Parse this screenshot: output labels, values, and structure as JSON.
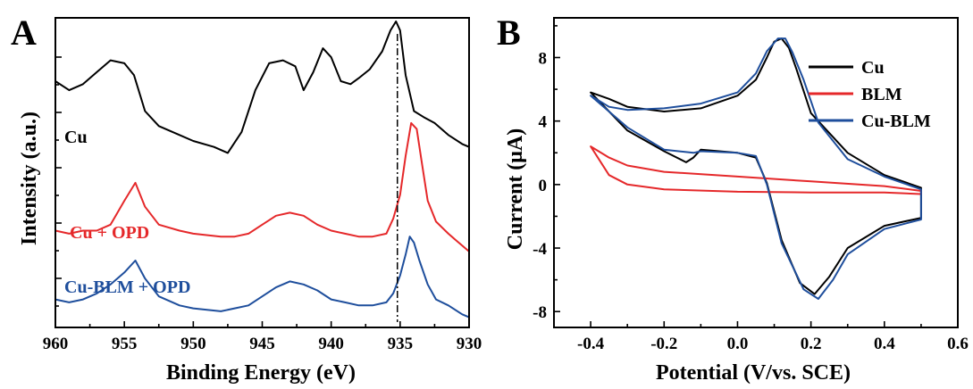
{
  "chart_data": [
    {
      "panel": "A",
      "type": "line",
      "xlabel": "Binding Energy (eV)",
      "ylabel": "Intensity (a.u.)",
      "xlim": [
        960,
        930
      ],
      "x_reversed": true,
      "x_ticks": [
        960,
        955,
        950,
        945,
        940,
        935,
        930
      ],
      "y_tick_labels": "none",
      "reference_line_x": 935.2,
      "series": [
        {
          "name": "Cu",
          "color": "#000000",
          "points": [
            [
              960,
              0.8
            ],
            [
              959,
              0.77
            ],
            [
              958,
              0.79
            ],
            [
              957,
              0.83
            ],
            [
              956,
              0.87
            ],
            [
              955,
              0.86
            ],
            [
              954.3,
              0.82
            ],
            [
              953.5,
              0.7
            ],
            [
              952.5,
              0.65
            ],
            [
              951,
              0.62
            ],
            [
              950,
              0.6
            ],
            [
              948.5,
              0.58
            ],
            [
              947.5,
              0.56
            ],
            [
              946.5,
              0.63
            ],
            [
              945.5,
              0.77
            ],
            [
              944.5,
              0.86
            ],
            [
              943.5,
              0.87
            ],
            [
              942.6,
              0.85
            ],
            [
              942.0,
              0.77
            ],
            [
              941.3,
              0.83
            ],
            [
              940.6,
              0.91
            ],
            [
              940,
              0.88
            ],
            [
              939.3,
              0.8
            ],
            [
              938.6,
              0.79
            ],
            [
              938,
              0.81
            ],
            [
              937.2,
              0.84
            ],
            [
              936.3,
              0.9
            ],
            [
              935.7,
              0.97
            ],
            [
              935.3,
              1.0
            ],
            [
              935.0,
              0.97
            ],
            [
              934.6,
              0.82
            ],
            [
              934.0,
              0.7
            ],
            [
              933.3,
              0.68
            ],
            [
              932.5,
              0.66
            ],
            [
              931.5,
              0.62
            ],
            [
              930.5,
              0.59
            ],
            [
              930,
              0.58
            ]
          ]
        },
        {
          "name": "Cu + OPD",
          "color": "#e5282a",
          "points": [
            [
              960,
              0.3
            ],
            [
              959,
              0.29
            ],
            [
              958,
              0.3
            ],
            [
              957,
              0.3
            ],
            [
              956,
              0.32
            ],
            [
              955,
              0.4
            ],
            [
              954.2,
              0.46
            ],
            [
              953.5,
              0.38
            ],
            [
              952.5,
              0.32
            ],
            [
              951,
              0.3
            ],
            [
              950,
              0.29
            ],
            [
              948,
              0.28
            ],
            [
              947,
              0.28
            ],
            [
              946,
              0.29
            ],
            [
              945,
              0.32
            ],
            [
              944,
              0.35
            ],
            [
              943,
              0.36
            ],
            [
              942,
              0.35
            ],
            [
              941,
              0.32
            ],
            [
              940,
              0.3
            ],
            [
              939,
              0.29
            ],
            [
              938,
              0.28
            ],
            [
              937,
              0.28
            ],
            [
              936,
              0.29
            ],
            [
              935.5,
              0.34
            ],
            [
              935,
              0.42
            ],
            [
              934.6,
              0.55
            ],
            [
              934.2,
              0.66
            ],
            [
              933.8,
              0.64
            ],
            [
              933.4,
              0.52
            ],
            [
              933,
              0.4
            ],
            [
              932.4,
              0.33
            ],
            [
              931.5,
              0.29
            ],
            [
              930.5,
              0.25
            ],
            [
              930,
              0.23
            ]
          ]
        },
        {
          "name": "Cu-BLM + OPD",
          "color": "#1e4e9c",
          "points": [
            [
              960,
              0.07
            ],
            [
              959,
              0.06
            ],
            [
              958,
              0.07
            ],
            [
              957,
              0.09
            ],
            [
              956,
              0.12
            ],
            [
              955,
              0.16
            ],
            [
              954.2,
              0.2
            ],
            [
              953.5,
              0.14
            ],
            [
              952.5,
              0.08
            ],
            [
              951,
              0.05
            ],
            [
              950,
              0.04
            ],
            [
              948,
              0.03
            ],
            [
              947,
              0.04
            ],
            [
              946,
              0.05
            ],
            [
              945,
              0.08
            ],
            [
              944,
              0.11
            ],
            [
              943,
              0.13
            ],
            [
              942,
              0.12
            ],
            [
              941,
              0.1
            ],
            [
              940,
              0.07
            ],
            [
              939,
              0.06
            ],
            [
              938,
              0.05
            ],
            [
              937,
              0.05
            ],
            [
              936,
              0.06
            ],
            [
              935.5,
              0.09
            ],
            [
              935,
              0.15
            ],
            [
              934.6,
              0.22
            ],
            [
              934.3,
              0.28
            ],
            [
              934,
              0.26
            ],
            [
              933.6,
              0.2
            ],
            [
              933,
              0.12
            ],
            [
              932.4,
              0.07
            ],
            [
              931.5,
              0.05
            ],
            [
              930.5,
              0.02
            ],
            [
              930,
              0.01
            ]
          ]
        }
      ]
    },
    {
      "panel": "B",
      "type": "line",
      "xlabel": "Potential (V/vs. SCE)",
      "ylabel": "Current (μA)",
      "xlim": [
        -0.5,
        0.6
      ],
      "ylim": [
        -9,
        10.5
      ],
      "x_ticks": [
        -0.4,
        -0.2,
        0.0,
        0.2,
        0.4,
        0.6
      ],
      "y_ticks": [
        -8,
        -4,
        0,
        4,
        8
      ],
      "legend_position": "top-right",
      "series": [
        {
          "name": "Cu",
          "color": "#000000",
          "points": [
            [
              -0.4,
              5.8
            ],
            [
              -0.35,
              5.4
            ],
            [
              -0.3,
              4.9
            ],
            [
              -0.2,
              4.6
            ],
            [
              -0.1,
              4.8
            ],
            [
              0.0,
              5.6
            ],
            [
              0.05,
              6.6
            ],
            [
              0.08,
              8.0
            ],
            [
              0.1,
              9.0
            ],
            [
              0.12,
              9.2
            ],
            [
              0.14,
              8.6
            ],
            [
              0.16,
              7.3
            ],
            [
              0.2,
              4.5
            ],
            [
              0.3,
              2.0
            ],
            [
              0.4,
              0.6
            ],
            [
              0.5,
              -0.2
            ],
            [
              0.5,
              -2.1
            ],
            [
              0.4,
              -2.6
            ],
            [
              0.3,
              -4.0
            ],
            [
              0.25,
              -5.8
            ],
            [
              0.21,
              -6.9
            ],
            [
              0.17,
              -6.2
            ],
            [
              0.12,
              -3.5
            ],
            [
              0.08,
              0.1
            ],
            [
              0.05,
              1.7
            ],
            [
              0.0,
              2.0
            ],
            [
              -0.1,
              2.2
            ],
            [
              -0.12,
              1.7
            ],
            [
              -0.14,
              1.4
            ],
            [
              -0.2,
              2.1
            ],
            [
              -0.3,
              3.4
            ],
            [
              -0.4,
              5.8
            ]
          ]
        },
        {
          "name": "BLM",
          "color": "#e5282a",
          "points": [
            [
              -0.4,
              2.4
            ],
            [
              -0.35,
              1.7
            ],
            [
              -0.3,
              1.2
            ],
            [
              -0.2,
              0.8
            ],
            [
              0.0,
              0.5
            ],
            [
              0.2,
              0.2
            ],
            [
              0.4,
              -0.1
            ],
            [
              0.5,
              -0.4
            ],
            [
              0.5,
              -0.6
            ],
            [
              0.4,
              -0.5
            ],
            [
              0.2,
              -0.5
            ],
            [
              0.0,
              -0.45
            ],
            [
              -0.2,
              -0.3
            ],
            [
              -0.3,
              0.0
            ],
            [
              -0.35,
              0.6
            ],
            [
              -0.4,
              2.4
            ]
          ]
        },
        {
          "name": "Cu-BLM",
          "color": "#1e4e9c",
          "points": [
            [
              -0.4,
              5.6
            ],
            [
              -0.35,
              4.9
            ],
            [
              -0.3,
              4.7
            ],
            [
              -0.2,
              4.8
            ],
            [
              -0.1,
              5.1
            ],
            [
              0.0,
              5.8
            ],
            [
              0.05,
              7.0
            ],
            [
              0.08,
              8.4
            ],
            [
              0.11,
              9.2
            ],
            [
              0.13,
              9.2
            ],
            [
              0.15,
              8.3
            ],
            [
              0.18,
              6.6
            ],
            [
              0.22,
              3.9
            ],
            [
              0.3,
              1.6
            ],
            [
              0.4,
              0.5
            ],
            [
              0.5,
              -0.3
            ],
            [
              0.5,
              -2.2
            ],
            [
              0.4,
              -2.8
            ],
            [
              0.3,
              -4.4
            ],
            [
              0.26,
              -6.0
            ],
            [
              0.22,
              -7.2
            ],
            [
              0.18,
              -6.6
            ],
            [
              0.12,
              -3.7
            ],
            [
              0.08,
              0.0
            ],
            [
              0.05,
              1.8
            ],
            [
              0.0,
              2.0
            ],
            [
              -0.1,
              2.1
            ],
            [
              -0.12,
              2.0
            ],
            [
              -0.2,
              2.2
            ],
            [
              -0.3,
              3.6
            ],
            [
              -0.4,
              5.6
            ]
          ]
        }
      ]
    }
  ]
}
